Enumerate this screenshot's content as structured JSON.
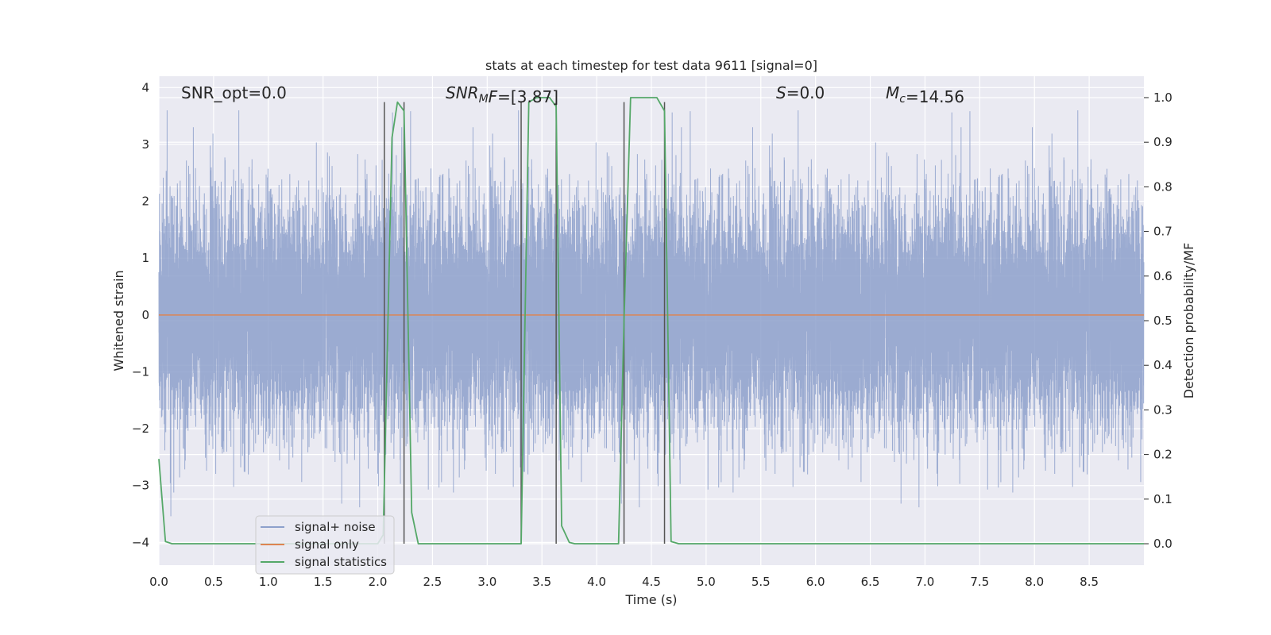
{
  "chart_data": {
    "type": "line",
    "title": "stats at each timestep for test data 9611 [signal=0]",
    "xlabel": "Time (s)",
    "ylabel": "Whitened strain",
    "ylabel_right": "Detection probability/MF",
    "xlim": [
      0.0,
      9.0
    ],
    "ylim": [
      -4.4,
      4.2
    ],
    "ylim_right": [
      -0.048,
      1.048
    ],
    "x_ticks": [
      0.0,
      0.5,
      1.0,
      1.5,
      2.0,
      2.5,
      3.0,
      3.5,
      4.0,
      4.5,
      5.0,
      5.5,
      6.0,
      6.5,
      7.0,
      7.5,
      8.0,
      8.5
    ],
    "x_tick_labels": [
      "0.0",
      "0.5",
      "1.0",
      "1.5",
      "2.0",
      "2.5",
      "3.0",
      "3.5",
      "4.0",
      "4.5",
      "5.0",
      "5.5",
      "6.0",
      "6.5",
      "7.0",
      "7.5",
      "8.0",
      "8.5"
    ],
    "y_ticks": [
      -4,
      -3,
      -2,
      -1,
      0,
      1,
      2,
      3,
      4
    ],
    "y_tick_labels": [
      "−4",
      "−3",
      "−2",
      "−1",
      "0",
      "1",
      "2",
      "3",
      "4"
    ],
    "y_ticks_right": [
      0.0,
      0.1,
      0.2,
      0.3,
      0.4,
      0.5,
      0.6,
      0.7,
      0.8,
      0.9,
      1.0
    ],
    "y_tick_labels_right": [
      "0.0",
      "0.1",
      "0.2",
      "0.3",
      "0.4",
      "0.5",
      "0.6",
      "0.7",
      "0.8",
      "0.9",
      "1.0"
    ],
    "grid": true,
    "legend": {
      "position": "lower-left",
      "entries": [
        {
          "label": "signal+ noise",
          "color": "#8da0cb"
        },
        {
          "label": "signal only",
          "color": "#dd8452"
        },
        {
          "label": "signal statistics",
          "color": "#55a868"
        }
      ]
    },
    "annotations": [
      {
        "id": "snr-opt",
        "parts": [
          {
            "t": "SNR_opt=0.0",
            "style": "normal"
          }
        ]
      },
      {
        "id": "snr-mf",
        "parts": [
          {
            "t": "SNR",
            "style": "italic"
          },
          {
            "t": "M",
            "style": "italic-sub"
          },
          {
            "t": "F",
            "style": "italic"
          },
          {
            "t": "=[3.87]",
            "style": "normal"
          }
        ]
      },
      {
        "id": "s-value",
        "parts": [
          {
            "t": "S",
            "style": "italic"
          },
          {
            "t": "=0.0",
            "style": "normal"
          }
        ]
      },
      {
        "id": "mc-value",
        "parts": [
          {
            "t": "M",
            "style": "italic"
          },
          {
            "t": "c",
            "style": "italic-sub"
          },
          {
            "t": "=14.56",
            "style": "normal"
          }
        ]
      }
    ],
    "series": [
      {
        "name": "signal+ noise",
        "axis": "left",
        "color": "#8da0cb",
        "sample_rate_hz": 2048,
        "noise_sigma": 1.0,
        "approx_range": [
          -4.0,
          3.6
        ]
      },
      {
        "name": "signal only",
        "axis": "left",
        "color": "#dd8452",
        "x": [
          0.0,
          9.0
        ],
        "y": [
          0.0,
          0.0
        ]
      },
      {
        "name": "signal statistics",
        "axis": "right",
        "color": "#55a868",
        "x": [
          0.0,
          0.06,
          0.12,
          2.0,
          2.05,
          2.13,
          2.18,
          2.24,
          2.31,
          2.37,
          3.0,
          3.31,
          3.38,
          3.45,
          3.57,
          3.63,
          3.68,
          3.75,
          3.8,
          4.0,
          4.2,
          4.25,
          4.31,
          4.37,
          4.43,
          4.5,
          4.55,
          4.62,
          4.68,
          4.75,
          5.0,
          9.0
        ],
        "y": [
          0.19,
          0.005,
          0.0,
          0.0,
          0.02,
          0.91,
          0.99,
          0.97,
          0.07,
          0.0,
          0.0,
          0.0,
          0.99,
          1.0,
          1.0,
          0.98,
          0.04,
          0.003,
          0.0,
          0.0,
          0.0,
          0.5,
          1.0,
          1.0,
          1.0,
          1.0,
          1.0,
          0.97,
          0.005,
          0.0,
          0.0,
          0.0
        ]
      }
    ],
    "vertical_markers": {
      "color": "#555555",
      "y_range": [
        0.0,
        0.99
      ],
      "x": [
        2.06,
        2.24,
        3.31,
        3.63,
        4.25,
        4.62
      ]
    }
  }
}
